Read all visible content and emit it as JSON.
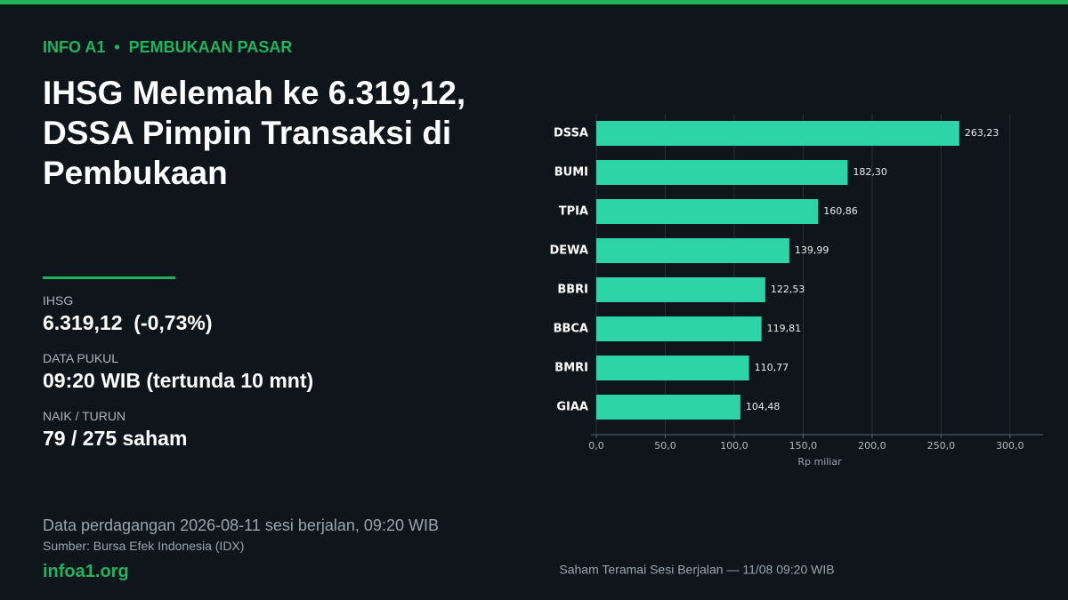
{
  "header": {
    "kicker": [
      "INFO A1",
      "PEMBUKAAN PASAR"
    ],
    "title": "IHSG Melemah ke 6.319,12, DSSA Pimpin Transaksi di Pembukaan"
  },
  "stats": [
    {
      "label": "IHSG",
      "value": "6.319,12  (-0,73%)"
    },
    {
      "label": "DATA PUKUL",
      "value": "09:20 WIB (tertunda 10 mnt)"
    },
    {
      "label": "NAIK / TURUN",
      "value": "79 / 275 saham"
    }
  ],
  "footer": {
    "note": "Data perdagangan 2026-08-11 sesi berjalan, 09:20 WIB",
    "source": "Sumber: Bursa Efek Indonesia (IDX)",
    "site": "infoa1.org"
  },
  "chart_data": {
    "type": "barh",
    "caption": "Saham Teramai Sesi Berjalan — 11/08 09:20 WIB",
    "xlabel": "Rp miliar",
    "categories": [
      "DSSA",
      "BUMI",
      "TPIA",
      "DEWA",
      "BBRI",
      "BBCA",
      "BMRI",
      "GIAA"
    ],
    "values": [
      263.23,
      182.3,
      160.86,
      139.99,
      122.53,
      119.81,
      110.77,
      104.48
    ],
    "value_labels": [
      "263,23",
      "182,30",
      "160,86",
      "139,99",
      "122,53",
      "119,81",
      "110,77",
      "104,48"
    ],
    "color": "#2dd4a7",
    "xlim": [
      0,
      324
    ],
    "xticks": [
      {
        "value": 0,
        "label": "0,0"
      },
      {
        "value": 50,
        "label": "50,0"
      },
      {
        "value": 100,
        "label": "100,0"
      },
      {
        "value": 150,
        "label": "150,0"
      },
      {
        "value": 200,
        "label": "200,0"
      },
      {
        "value": 250,
        "label": "250,0"
      },
      {
        "value": 300,
        "label": "300,0"
      }
    ],
    "grid": true
  }
}
